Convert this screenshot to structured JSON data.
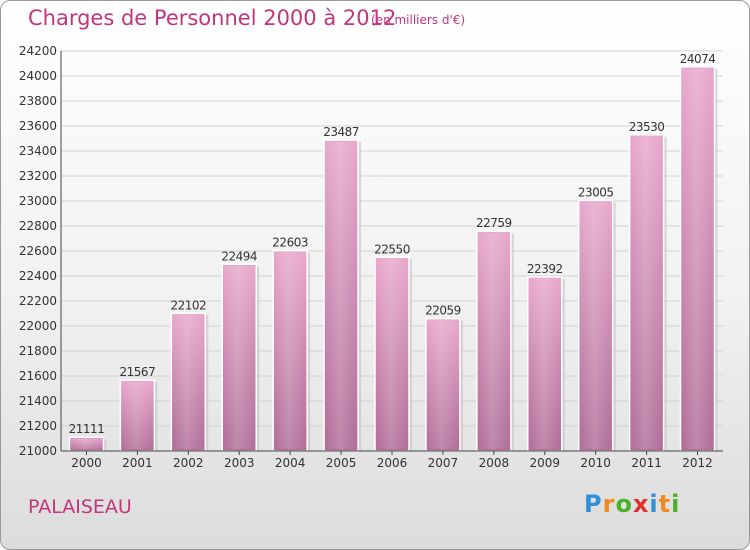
{
  "title": "Charges de Personnel 2000 à 2012",
  "subtitle": "(en milliers d'€)",
  "city": "PALAISEAU",
  "logo": {
    "letters": [
      {
        "char": "P",
        "color": "#2f8fd8"
      },
      {
        "char": "r",
        "color": "#f08a1c"
      },
      {
        "char": "o",
        "color": "#4caf2a"
      },
      {
        "char": "x",
        "color": "#e03030"
      },
      {
        "char": "i",
        "color": "#2f8fd8"
      },
      {
        "char": "t",
        "color": "#f08a1c"
      },
      {
        "char": "i",
        "color": "#4caf2a"
      }
    ]
  },
  "colors": {
    "accent": "#c2357c",
    "bar_top": "#e8a8cc",
    "bar_bottom": "#b06e98"
  },
  "chart_data": {
    "type": "bar",
    "categories": [
      "2000",
      "2001",
      "2002",
      "2003",
      "2004",
      "2005",
      "2006",
      "2007",
      "2008",
      "2009",
      "2010",
      "2011",
      "2012"
    ],
    "values": [
      21111,
      21567,
      22102,
      22494,
      22603,
      23487,
      22550,
      22059,
      22759,
      22392,
      23005,
      23530,
      24074
    ],
    "ylim": [
      21000,
      24200
    ],
    "yticks": [
      "21000",
      "21200",
      "21400",
      "21600",
      "21800",
      "22000",
      "22200",
      "22400",
      "22600",
      "22800",
      "23000",
      "23200",
      "23400",
      "23600",
      "23800",
      "24000",
      "24200"
    ],
    "grid": true,
    "data_labels": true
  }
}
